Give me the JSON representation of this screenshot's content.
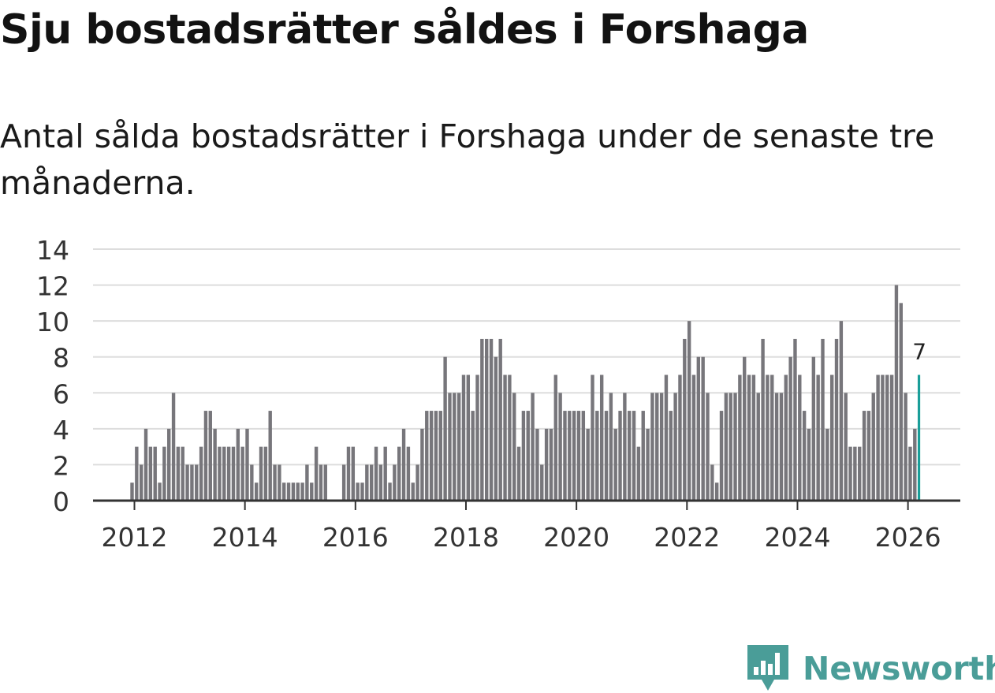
{
  "title": "Sju bostadsrätter såldes i Forshaga",
  "subtitle": "Antal sålda bostadsrätter i Forshaga under de senaste tre månaderna.",
  "brand": {
    "name": "Newsworthy",
    "icon": "newsworthy-bar-chart-icon",
    "color": "#4a9d98"
  },
  "colors": {
    "bar": "#77767b",
    "highlight": "#1a9e99",
    "grid": "#dddddd",
    "axis": "#333333",
    "text": "#333333"
  },
  "chart_data": {
    "type": "bar",
    "title": "Sju bostadsrätter såldes i Forshaga",
    "xlabel": "",
    "ylabel": "",
    "ylim": [
      0,
      14
    ],
    "yticks": [
      "0",
      "2",
      "4",
      "6",
      "8",
      "10",
      "12",
      "14"
    ],
    "xticks": [
      "2012",
      "2014",
      "2016",
      "2018",
      "2020",
      "2022",
      "2024",
      "2026"
    ],
    "start": "2011-04",
    "grid": true,
    "annotation": {
      "label": "7",
      "target": "last"
    },
    "values": [
      0,
      0,
      0,
      0,
      0,
      0,
      0,
      0,
      0,
      1,
      3,
      2,
      4,
      3,
      3,
      1,
      3,
      4,
      6,
      3,
      3,
      2,
      2,
      2,
      3,
      5,
      5,
      4,
      3,
      3,
      3,
      3,
      4,
      3,
      4,
      2,
      1,
      3,
      3,
      5,
      2,
      2,
      1,
      1,
      1,
      1,
      1,
      2,
      1,
      3,
      2,
      2,
      0,
      0,
      0,
      2,
      3,
      3,
      1,
      1,
      2,
      2,
      3,
      2,
      3,
      1,
      2,
      3,
      4,
      3,
      1,
      2,
      4,
      5,
      5,
      5,
      5,
      8,
      6,
      6,
      6,
      7,
      7,
      5,
      7,
      9,
      9,
      9,
      8,
      9,
      7,
      7,
      6,
      3,
      5,
      5,
      6,
      4,
      2,
      4,
      4,
      7,
      6,
      5,
      5,
      5,
      5,
      5,
      4,
      7,
      5,
      7,
      5,
      6,
      4,
      5,
      6,
      5,
      5,
      3,
      5,
      4,
      6,
      6,
      6,
      7,
      5,
      6,
      7,
      9,
      10,
      7,
      8,
      8,
      6,
      2,
      1,
      5,
      6,
      6,
      6,
      7,
      8,
      7,
      7,
      6,
      9,
      7,
      7,
      6,
      6,
      7,
      8,
      9,
      7,
      5,
      4,
      8,
      7,
      9,
      4,
      7,
      9,
      10,
      6,
      3,
      3,
      3,
      5,
      5,
      6,
      7,
      7,
      7,
      7,
      12,
      11,
      6,
      3,
      4,
      7
    ]
  }
}
